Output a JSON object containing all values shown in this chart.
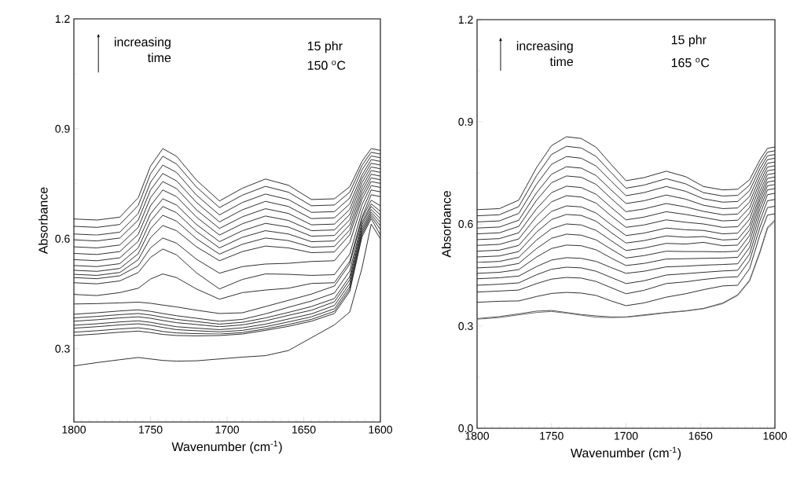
{
  "chart_data": [
    {
      "type": "line",
      "xlabel": "Wavenumber (cm$^{-1}$)",
      "ylabel": "Absorbance",
      "annotations": [
        "increasing time",
        "15 phr",
        "150 $^{o}$C"
      ],
      "xlim": [
        1800,
        1600
      ],
      "ylim": [
        0.1,
        1.2
      ],
      "xticks": [
        1800,
        1750,
        1700,
        1650,
        1600
      ],
      "yticks": [
        0.3,
        0.6,
        0.9,
        1.2
      ],
      "x": [
        1800,
        1785,
        1770,
        1758,
        1750,
        1742,
        1733,
        1720,
        1705,
        1690,
        1675,
        1660,
        1645,
        1630,
        1620,
        1612,
        1606,
        1600
      ],
      "series": [
        {
          "color": "#222222",
          "values": [
            0.654,
            0.651,
            0.659,
            0.712,
            0.798,
            0.846,
            0.825,
            0.76,
            0.703,
            0.738,
            0.763,
            0.746,
            0.707,
            0.709,
            0.742,
            0.811,
            0.846,
            0.841
          ]
        },
        {
          "color": "#222222",
          "values": [
            0.634,
            0.631,
            0.639,
            0.691,
            0.777,
            0.825,
            0.804,
            0.741,
            0.685,
            0.719,
            0.743,
            0.727,
            0.69,
            0.692,
            0.727,
            0.8,
            0.836,
            0.831
          ]
        },
        {
          "color": "#222222",
          "values": [
            0.613,
            0.61,
            0.618,
            0.669,
            0.754,
            0.801,
            0.781,
            0.719,
            0.665,
            0.699,
            0.722,
            0.707,
            0.672,
            0.674,
            0.711,
            0.788,
            0.826,
            0.821
          ]
        },
        {
          "color": "#222222",
          "values": [
            0.597,
            0.594,
            0.602,
            0.651,
            0.733,
            0.778,
            0.758,
            0.699,
            0.646,
            0.679,
            0.702,
            0.688,
            0.655,
            0.657,
            0.695,
            0.774,
            0.816,
            0.811
          ]
        },
        {
          "color": "#222222",
          "values": [
            0.578,
            0.575,
            0.583,
            0.631,
            0.712,
            0.756,
            0.737,
            0.679,
            0.628,
            0.66,
            0.682,
            0.669,
            0.638,
            0.64,
            0.68,
            0.764,
            0.806,
            0.801
          ]
        },
        {
          "color": "#222222",
          "values": [
            0.56,
            0.557,
            0.565,
            0.612,
            0.69,
            0.733,
            0.715,
            0.659,
            0.61,
            0.641,
            0.662,
            0.65,
            0.622,
            0.624,
            0.666,
            0.753,
            0.796,
            0.791
          ]
        },
        {
          "color": "#222222",
          "values": [
            0.543,
            0.54,
            0.548,
            0.593,
            0.668,
            0.709,
            0.692,
            0.639,
            0.592,
            0.622,
            0.642,
            0.632,
            0.607,
            0.609,
            0.652,
            0.741,
            0.786,
            0.781
          ]
        },
        {
          "color": "#222222",
          "values": [
            0.527,
            0.524,
            0.532,
            0.575,
            0.648,
            0.688,
            0.671,
            0.62,
            0.575,
            0.604,
            0.622,
            0.613,
            0.592,
            0.594,
            0.638,
            0.73,
            0.776,
            0.771
          ]
        },
        {
          "color": "#222222",
          "values": [
            0.514,
            0.511,
            0.519,
            0.559,
            0.627,
            0.664,
            0.648,
            0.6,
            0.558,
            0.585,
            0.602,
            0.595,
            0.577,
            0.579,
            0.624,
            0.719,
            0.766,
            0.761
          ]
        },
        {
          "color": "#222222",
          "values": [
            0.503,
            0.5,
            0.508,
            0.543,
            0.603,
            0.636,
            0.622,
            0.578,
            0.54,
            0.565,
            0.58,
            0.575,
            0.562,
            0.564,
            0.611,
            0.708,
            0.756,
            0.751
          ]
        },
        {
          "color": "#222222",
          "values": [
            0.494,
            0.491,
            0.499,
            0.526,
            0.575,
            0.602,
            0.588,
            0.544,
            0.506,
            0.524,
            0.531,
            0.533,
            0.538,
            0.54,
            0.59,
            0.693,
            0.745,
            0.74
          ]
        },
        {
          "color": "#222222",
          "values": [
            0.48,
            0.477,
            0.485,
            0.508,
            0.549,
            0.572,
            0.556,
            0.507,
            0.463,
            0.489,
            0.504,
            0.503,
            0.5,
            0.502,
            0.558,
            0.675,
            0.733,
            0.728
          ]
        },
        {
          "color": "#222222",
          "values": [
            0.448,
            0.445,
            0.453,
            0.465,
            0.49,
            0.504,
            0.494,
            0.463,
            0.435,
            0.453,
            0.46,
            0.465,
            0.478,
            0.48,
            0.538,
            0.659,
            0.72,
            0.715
          ]
        },
        {
          "color": "#222222",
          "values": [
            0.422,
            0.423,
            0.425,
            0.427,
            0.424,
            0.419,
            0.414,
            0.405,
            0.396,
            0.398,
            0.415,
            0.432,
            0.449,
            0.471,
            0.531,
            0.655,
            0.705,
            0.69
          ]
        },
        {
          "color": "#222222",
          "values": [
            0.394,
            0.398,
            0.403,
            0.406,
            0.402,
            0.396,
            0.39,
            0.383,
            0.375,
            0.38,
            0.395,
            0.413,
            0.43,
            0.452,
            0.512,
            0.645,
            0.695,
            0.675
          ]
        },
        {
          "color": "#222222",
          "values": [
            0.384,
            0.388,
            0.393,
            0.396,
            0.392,
            0.386,
            0.38,
            0.374,
            0.367,
            0.372,
            0.384,
            0.399,
            0.415,
            0.437,
            0.497,
            0.638,
            0.688,
            0.665
          ]
        },
        {
          "color": "#222222",
          "values": [
            0.375,
            0.379,
            0.384,
            0.387,
            0.383,
            0.377,
            0.371,
            0.366,
            0.36,
            0.365,
            0.376,
            0.391,
            0.405,
            0.428,
            0.488,
            0.63,
            0.68,
            0.655
          ]
        },
        {
          "color": "#222222",
          "values": [
            0.364,
            0.368,
            0.373,
            0.376,
            0.372,
            0.366,
            0.36,
            0.356,
            0.352,
            0.357,
            0.367,
            0.381,
            0.395,
            0.418,
            0.478,
            0.623,
            0.673,
            0.645
          ]
        },
        {
          "color": "#222222",
          "values": [
            0.356,
            0.36,
            0.365,
            0.368,
            0.364,
            0.358,
            0.352,
            0.349,
            0.346,
            0.35,
            0.36,
            0.373,
            0.387,
            0.409,
            0.469,
            0.617,
            0.667,
            0.635
          ]
        },
        {
          "color": "#222222",
          "values": [
            0.345,
            0.349,
            0.354,
            0.357,
            0.353,
            0.347,
            0.343,
            0.341,
            0.34,
            0.344,
            0.354,
            0.366,
            0.38,
            0.402,
            0.462,
            0.611,
            0.661,
            0.625
          ]
        },
        {
          "color": "#222222",
          "values": [
            0.336,
            0.34,
            0.345,
            0.348,
            0.344,
            0.339,
            0.336,
            0.335,
            0.336,
            0.34,
            0.35,
            0.361,
            0.375,
            0.396,
            0.456,
            0.605,
            0.655,
            0.61
          ]
        },
        {
          "color": "#222222",
          "values": [
            0.253,
            0.262,
            0.27,
            0.276,
            0.272,
            0.268,
            0.266,
            0.267,
            0.272,
            0.277,
            0.281,
            0.295,
            0.33,
            0.365,
            0.4,
            0.52,
            0.64,
            0.6
          ]
        }
      ]
    },
    {
      "type": "line",
      "xlabel": "Wavenumber (cm$^{-1}$)",
      "ylabel": "Absorbance",
      "annotations": [
        "increasing time",
        "15 phr",
        "165 $^{o}$C"
      ],
      "xlim": [
        1800,
        1600
      ],
      "ylim": [
        0,
        1.2
      ],
      "xticks": [
        1800,
        1750,
        1700,
        1650,
        1600
      ],
      "yticks": [
        {
          "value": 0,
          "label": "0.0"
        },
        0.3,
        0.6,
        0.9,
        1.2
      ],
      "x": [
        1800,
        1785,
        1772,
        1760,
        1750,
        1740,
        1730,
        1720,
        1710,
        1700,
        1688,
        1673,
        1660,
        1648,
        1635,
        1625,
        1617,
        1610,
        1605,
        1600
      ],
      "series": [
        {
          "color": "#222222",
          "values": [
            0.642,
            0.645,
            0.67,
            0.766,
            0.83,
            0.856,
            0.851,
            0.825,
            0.775,
            0.727,
            0.736,
            0.755,
            0.739,
            0.71,
            0.7,
            0.702,
            0.73,
            0.789,
            0.822,
            0.826
          ]
        },
        {
          "color": "#222222",
          "values": [
            0.624,
            0.627,
            0.651,
            0.742,
            0.804,
            0.828,
            0.823,
            0.798,
            0.751,
            0.705,
            0.714,
            0.733,
            0.718,
            0.692,
            0.682,
            0.684,
            0.714,
            0.776,
            0.811,
            0.815
          ]
        },
        {
          "color": "#222222",
          "values": [
            0.606,
            0.609,
            0.631,
            0.717,
            0.775,
            0.798,
            0.793,
            0.77,
            0.726,
            0.683,
            0.692,
            0.71,
            0.696,
            0.674,
            0.664,
            0.666,
            0.698,
            0.763,
            0.8,
            0.804
          ]
        },
        {
          "color": "#222222",
          "values": [
            0.588,
            0.591,
            0.611,
            0.692,
            0.746,
            0.768,
            0.764,
            0.742,
            0.7,
            0.66,
            0.668,
            0.685,
            0.673,
            0.655,
            0.645,
            0.647,
            0.681,
            0.75,
            0.789,
            0.793
          ]
        },
        {
          "color": "#222222",
          "values": [
            0.571,
            0.574,
            0.593,
            0.67,
            0.721,
            0.741,
            0.737,
            0.716,
            0.675,
            0.636,
            0.644,
            0.66,
            0.65,
            0.637,
            0.627,
            0.629,
            0.664,
            0.737,
            0.778,
            0.782
          ]
        },
        {
          "color": "#222222",
          "values": [
            0.554,
            0.557,
            0.574,
            0.645,
            0.692,
            0.711,
            0.707,
            0.687,
            0.649,
            0.612,
            0.62,
            0.636,
            0.628,
            0.619,
            0.609,
            0.611,
            0.648,
            0.724,
            0.767,
            0.771
          ]
        },
        {
          "color": "#222222",
          "values": [
            0.537,
            0.54,
            0.556,
            0.622,
            0.665,
            0.683,
            0.679,
            0.661,
            0.624,
            0.59,
            0.597,
            0.612,
            0.605,
            0.6,
            0.59,
            0.592,
            0.631,
            0.711,
            0.756,
            0.76
          ]
        },
        {
          "color": "#222222",
          "values": [
            0.52,
            0.523,
            0.537,
            0.597,
            0.637,
            0.653,
            0.65,
            0.632,
            0.598,
            0.566,
            0.573,
            0.588,
            0.583,
            0.581,
            0.571,
            0.573,
            0.614,
            0.697,
            0.745,
            0.749
          ]
        },
        {
          "color": "#222222",
          "values": [
            0.503,
            0.506,
            0.519,
            0.576,
            0.613,
            0.628,
            0.625,
            0.608,
            0.575,
            0.544,
            0.551,
            0.565,
            0.561,
            0.563,
            0.553,
            0.555,
            0.597,
            0.684,
            0.734,
            0.738
          ]
        },
        {
          "color": "#222222",
          "values": [
            0.487,
            0.49,
            0.502,
            0.553,
            0.586,
            0.6,
            0.597,
            0.581,
            0.551,
            0.522,
            0.529,
            0.543,
            0.541,
            0.546,
            0.536,
            0.538,
            0.582,
            0.672,
            0.723,
            0.727
          ]
        },
        {
          "color": "#222222",
          "values": [
            0.471,
            0.474,
            0.484,
            0.528,
            0.558,
            0.57,
            0.567,
            0.553,
            0.526,
            0.5,
            0.507,
            0.52,
            0.519,
            0.519,
            0.518,
            0.52,
            0.566,
            0.659,
            0.712,
            0.716
          ]
        },
        {
          "color": "#222222",
          "values": [
            0.455,
            0.458,
            0.466,
            0.503,
            0.528,
            0.538,
            0.536,
            0.524,
            0.5,
            0.478,
            0.484,
            0.497,
            0.498,
            0.499,
            0.5,
            0.502,
            0.549,
            0.645,
            0.7,
            0.704
          ]
        },
        {
          "color": "#222222",
          "values": [
            0.439,
            0.442,
            0.447,
            0.475,
            0.494,
            0.501,
            0.499,
            0.49,
            0.472,
            0.455,
            0.461,
            0.474,
            0.476,
            0.479,
            0.481,
            0.483,
            0.531,
            0.629,
            0.686,
            0.69
          ]
        },
        {
          "color": "#222222",
          "values": [
            0.42,
            0.423,
            0.427,
            0.451,
            0.467,
            0.473,
            0.471,
            0.461,
            0.443,
            0.425,
            0.433,
            0.45,
            0.454,
            0.458,
            0.462,
            0.464,
            0.512,
            0.611,
            0.668,
            0.672
          ]
        },
        {
          "color": "#222222",
          "values": [
            0.4,
            0.403,
            0.406,
            0.425,
            0.438,
            0.443,
            0.441,
            0.431,
            0.413,
            0.395,
            0.405,
            0.425,
            0.43,
            0.437,
            0.443,
            0.445,
            0.493,
            0.591,
            0.648,
            0.652
          ]
        },
        {
          "color": "#222222",
          "values": [
            0.37,
            0.373,
            0.374,
            0.387,
            0.396,
            0.399,
            0.397,
            0.39,
            0.374,
            0.36,
            0.368,
            0.385,
            0.395,
            0.407,
            0.418,
            0.42,
            0.469,
            0.569,
            0.626,
            0.63
          ]
        },
        {
          "color": "#444444",
          "values": [
            0.322,
            0.328,
            0.336,
            0.344,
            0.346,
            0.34,
            0.334,
            0.33,
            0.327,
            0.327,
            0.333,
            0.34,
            0.345,
            0.352,
            0.368,
            0.392,
            0.435,
            0.52,
            0.59,
            0.612
          ]
        },
        {
          "color": "#666666",
          "values": [
            0.32,
            0.325,
            0.333,
            0.34,
            0.343,
            0.338,
            0.332,
            0.326,
            0.325,
            0.326,
            0.331,
            0.339,
            0.344,
            0.351,
            0.366,
            0.39,
            0.432,
            0.516,
            0.586,
            0.608
          ]
        }
      ]
    }
  ]
}
